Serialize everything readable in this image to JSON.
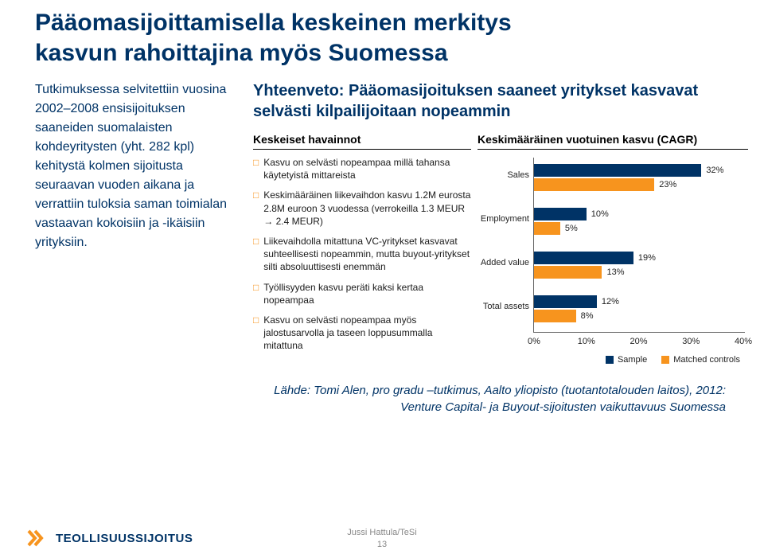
{
  "title_line1": "Pääomasijoittamisella keskeinen merkitys",
  "title_line2": "kasvun rahoittajina myös Suomessa",
  "left_text": "Tutkimuksessa selvitettiin vuosina 2002–2008 ensisijoituksen saaneiden suomalaisten kohdeyritysten (yht. 282 kpl) kehitystä kolmen sijoitusta seuraavan vuoden aikana ja verrattiin tuloksia saman toimialan vastaavan kokoisiin ja -ikäisiin yrityksiin.",
  "subtitle": "Yhteenveto: Pääomasijoituksen saaneet yritykset kasvavat selvästi kilpailijoitaan nopeammin",
  "col_left_header": "Keskeiset havainnot",
  "col_right_header": "Keskimääräinen vuotuinen kasvu (CAGR)",
  "findings": [
    "Kasvu on selvästi nopeampaa millä tahansa käytetyistä mittareista",
    "Keskimääräinen liikevaihdon kasvu 1.2M eurosta 2.8M euroon 3 vuodessa (verrokeilla 1.3 MEUR → 2.4 MEUR)",
    "Liikevaihdolla mitattuna VC-yritykset kasvavat suhteellisesti nopeammin, mutta buyout-yritykset silti absoluuttisesti enemmän",
    "Työllisyyden kasvu peräti kaksi kertaa nopeampaa",
    "Kasvu on selvästi nopeampaa myös jalostusarvolla ja taseen loppusummalla mitattuna"
  ],
  "chart": {
    "categories": [
      "Sales",
      "Employment",
      "Added value",
      "Total assets"
    ],
    "series": [
      {
        "name": "Sample",
        "values": [
          32,
          10,
          19,
          12
        ],
        "color": "#003366"
      },
      {
        "name": "Matched controls",
        "values": [
          23,
          5,
          13,
          8
        ],
        "color": "#f7941e"
      }
    ],
    "xmax": 40,
    "xtick_step": 10,
    "xtick_suffix": "%",
    "legend_labels": [
      "Sample",
      "Matched controls"
    ]
  },
  "source_line1": "Lähde: Tomi Alen, pro gradu –tutkimus, Aalto yliopisto (tuotantotalouden laitos), 2012:",
  "source_line2": "Venture Capital- ja Buyout-sijoitusten vaikuttavuus Suomessa",
  "logo_text": "TEOLLISUUSSIJOITUS",
  "footer_author": "Jussi Hattula/TeSi",
  "footer_page": "13"
}
